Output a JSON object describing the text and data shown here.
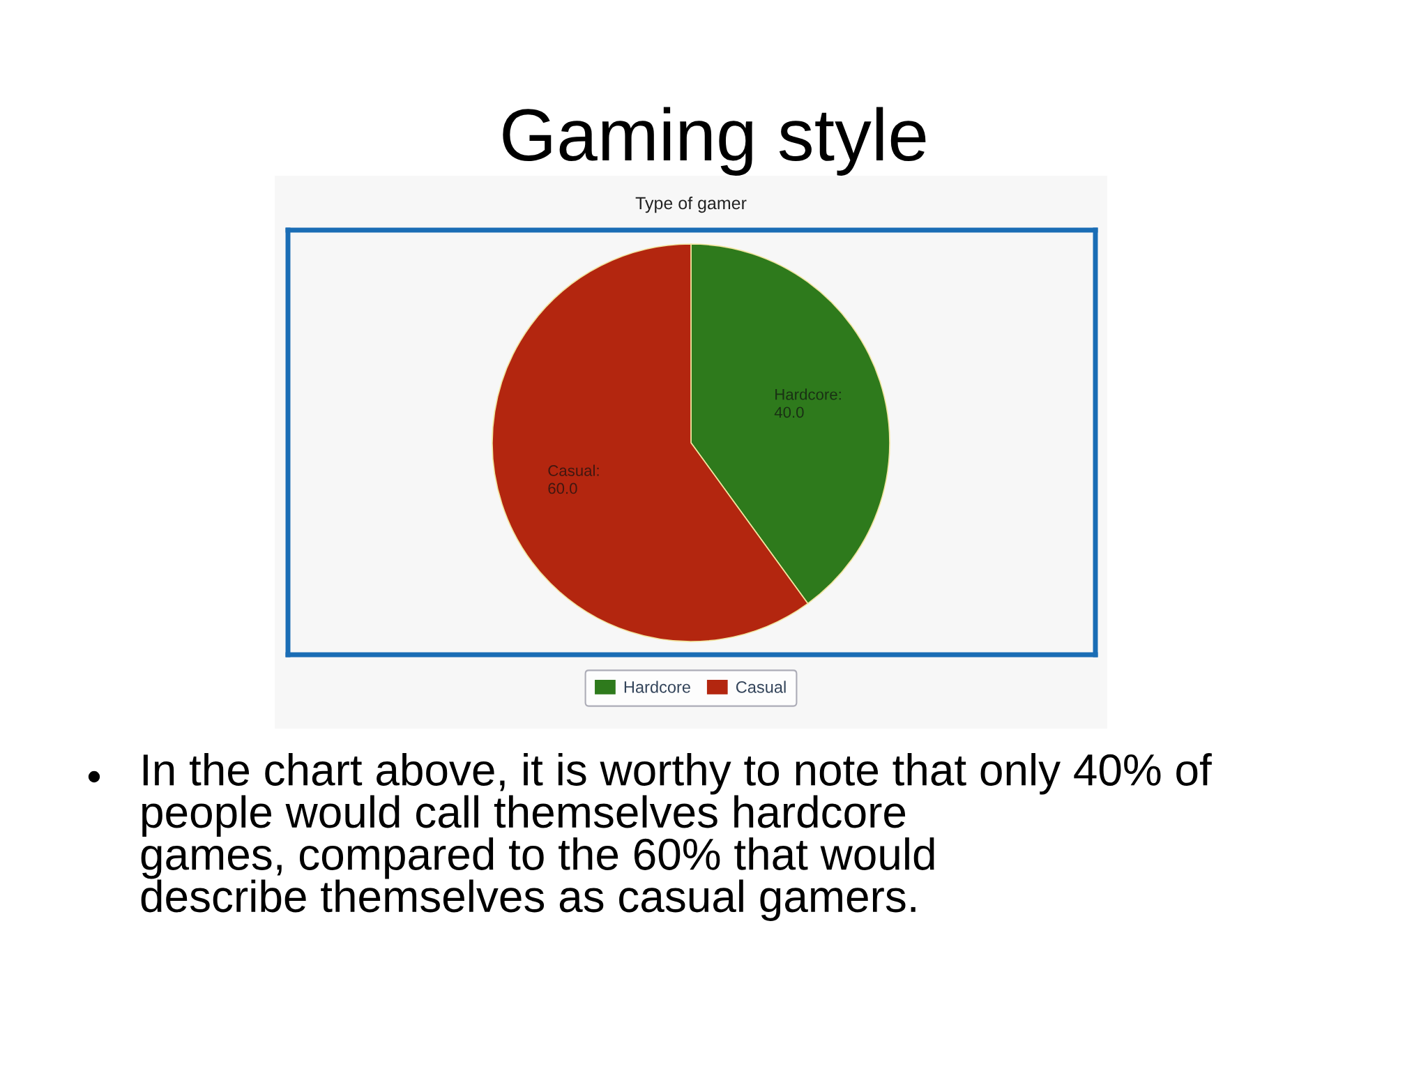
{
  "chart_data": {
    "type": "pie",
    "title": "Gaming style",
    "subtitle": "Type of gamer",
    "categories": [
      "Hardcore",
      "Casual"
    ],
    "values": [
      40.0,
      60.0
    ],
    "colors": [
      "#2e7a1c",
      "#b3260f"
    ],
    "value_labels": [
      "Hardcore:\n40.0",
      "Casual:\n60.0"
    ],
    "legend": "bottom",
    "annotations": [
      "In the chart above, it is worthy to note that only 40% of\npeople would call themselves hardcore\ngames, compared to the 60% that would\ndescribe themselves as casual gamers."
    ]
  }
}
